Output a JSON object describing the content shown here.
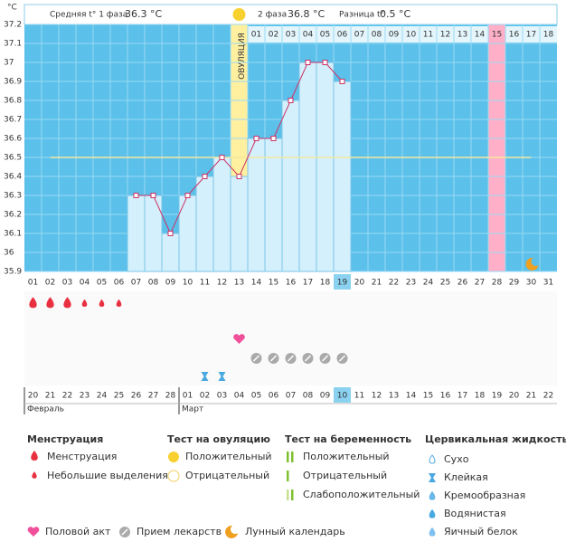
{
  "chart_data": {
    "type": "line",
    "y_label": "°C",
    "header": {
      "phase1": "Средняя t° 1 фаза",
      "phase1_value": "36.3 °C",
      "phase2": "2 фаза",
      "phase2_value": "36.8 °C",
      "diff": "Разница t°",
      "diff_value": "0.5 °C"
    },
    "ovulation_label": "ОВУЛЯЦИЯ",
    "ovulation_index": 12,
    "categories": [
      "01",
      "02",
      "03",
      "04",
      "05",
      "06",
      "07",
      "08",
      "09",
      "10",
      "11",
      "12",
      "13",
      "14",
      "15",
      "16",
      "17",
      "18",
      "19",
      "20",
      "21",
      "22",
      "23",
      "24",
      "25",
      "26",
      "27",
      "28",
      "29",
      "30",
      "31"
    ],
    "values": [
      null,
      null,
      null,
      null,
      null,
      null,
      36.3,
      36.3,
      36.1,
      36.3,
      36.4,
      36.5,
      36.4,
      36.6,
      36.6,
      36.8,
      37,
      37,
      36.9,
      null,
      null,
      null,
      null,
      null,
      null,
      null,
      null,
      null,
      null,
      null,
      null
    ],
    "color": "#cc3366",
    "coverline": 36.5,
    "ylim": [
      35.9,
      37.2
    ],
    "yticks": [
      35.9,
      36,
      36.1,
      36.2,
      36.3,
      36.4,
      36.5,
      36.6,
      36.7,
      36.8,
      36.9,
      37,
      37.1,
      37.2
    ],
    "phase2_start": 13,
    "phase2_days": [
      "01",
      "02",
      "03",
      "04",
      "05",
      "06",
      "07",
      "08",
      "09",
      "10",
      "11",
      "12",
      "13",
      "14",
      "15",
      "16",
      "17",
      "18"
    ],
    "today_index": 18,
    "pink_index": 27,
    "menstruation_big": [
      0,
      1,
      2
    ],
    "menstruation_small": [
      3,
      4,
      5
    ],
    "intercourse": [
      12
    ],
    "medication": [
      13,
      14,
      15,
      16,
      17,
      18
    ],
    "sticky": [
      10,
      11
    ],
    "moon": [
      29
    ],
    "dates": [
      "20",
      "21",
      "22",
      "23",
      "24",
      "25",
      "26",
      "27",
      "28",
      "01",
      "02",
      "03",
      "04",
      "05",
      "06",
      "07",
      "08",
      "09",
      "10",
      "11",
      "12",
      "13",
      "14",
      "15",
      "16",
      "17",
      "18",
      "19",
      "20",
      "21",
      "22"
    ],
    "weekend": [
      5,
      6,
      12,
      13,
      19,
      20,
      26,
      27
    ],
    "months": [
      {
        "label": "Февраль",
        "start": 0
      },
      {
        "label": "Март",
        "start": 9
      }
    ]
  },
  "legend": {
    "menstruation": {
      "title": "Менструация",
      "items": [
        "Менструация",
        "Небольшие выделения"
      ]
    },
    "ovulation_test": {
      "title": "Тест на овуляцию",
      "items": [
        "Положительный",
        "Отрицательный"
      ]
    },
    "pregnancy_test": {
      "title": "Тест на беременность",
      "items": [
        "Положительный",
        "Отрицательный",
        "Слабоположительный"
      ]
    },
    "cervical_fluid": {
      "title": "Цервикальная жидкость",
      "items": [
        "Сухо",
        "Клейкая",
        "Кремообразная",
        "Водянистая",
        "Яичный белок"
      ]
    },
    "other": [
      "Половой акт",
      "Прием лекарств",
      "Лунный календарь"
    ]
  }
}
